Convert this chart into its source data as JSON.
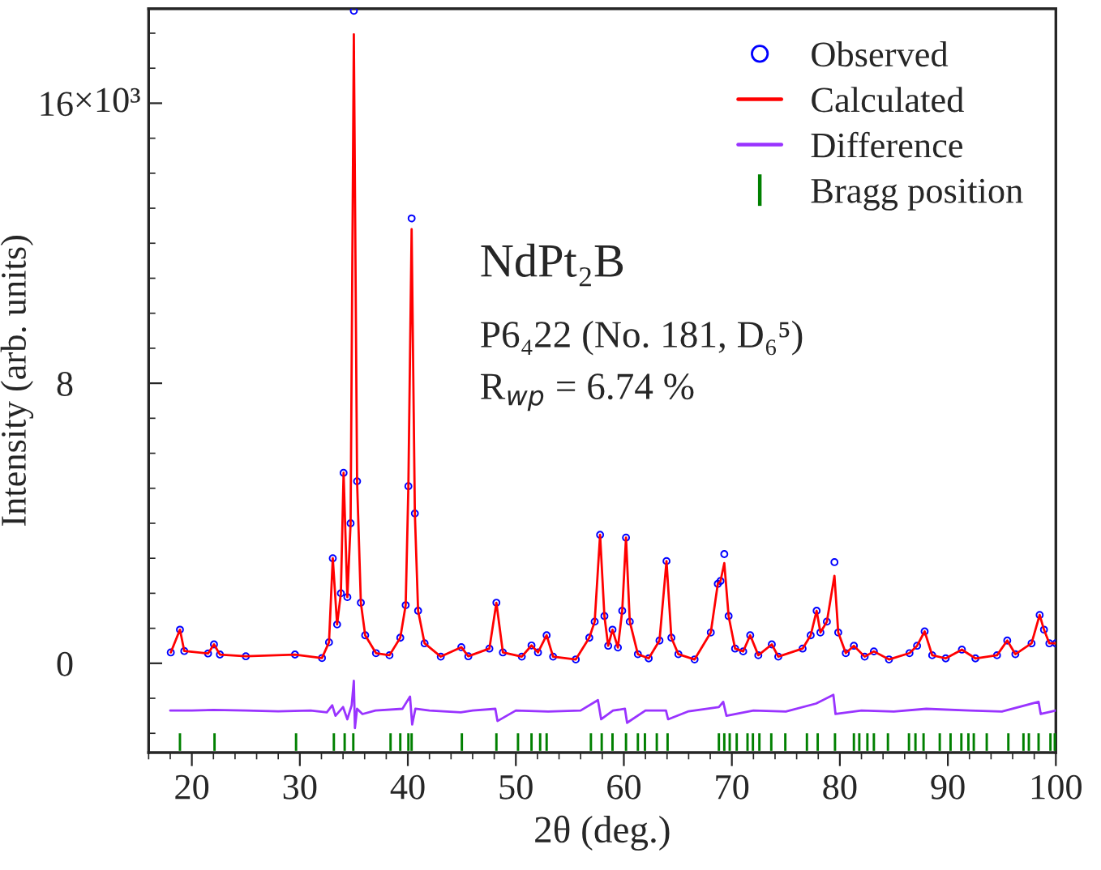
{
  "chart_data": {
    "type": "scatter",
    "xlabel": "2θ (deg.)",
    "ylabel": "Intensity (arb. units)",
    "xlim": [
      16,
      100
    ],
    "ylim": [
      -2.55,
      18.7
    ],
    "xticks": [
      20,
      30,
      40,
      50,
      60,
      70,
      80,
      90,
      100
    ],
    "yticks": [
      0,
      8,
      16
    ],
    "legend": "top right",
    "grid": false,
    "annotations": [
      "NdPt₂B",
      "P6₄22 (No. 181, D₆⁵)",
      "R$_{wp}$ = 6.74 %",
      "×10³"
    ],
    "x": [
      18.05,
      18.9,
      19.3,
      21.5,
      22.05,
      22.6,
      25,
      29.55,
      32.05,
      32.7,
      33.05,
      33.45,
      33.8,
      34.05,
      34.4,
      34.7,
      35.0,
      35.3,
      35.65,
      36.05,
      37.05,
      38.3,
      39.3,
      39.8,
      40.05,
      40.35,
      40.65,
      40.95,
      41.55,
      43.05,
      44.95,
      45.6,
      47.55,
      48.2,
      48.8,
      50.55,
      51.45,
      52.05,
      52.85,
      53.45,
      55.55,
      56.8,
      57.3,
      57.8,
      58.2,
      58.55,
      58.95,
      59.45,
      59.85,
      60.2,
      60.55,
      61.3,
      62.3,
      63.3,
      63.95,
      64.4,
      65.05,
      66.55,
      68.05,
      68.7,
      68.95,
      69.3,
      69.7,
      70.3,
      71.05,
      71.7,
      72.45,
      73.7,
      74.3,
      76.55,
      77.3,
      77.85,
      78.2,
      78.8,
      79.5,
      79.85,
      80.55,
      81.3,
      82.3,
      83.15,
      84.55,
      86.45,
      87.15,
      87.85,
      88.55,
      89.8,
      91.3,
      92.55,
      94.55,
      95.5,
      96.25,
      97.75,
      98.5,
      98.9,
      99.4,
      100
    ],
    "series": [
      {
        "name": "Observed",
        "marker": "circle",
        "color": "#0000ff",
        "values": [
          0.31,
          0.96,
          0.35,
          0.28,
          0.54,
          0.25,
          0.2,
          0.25,
          0.15,
          0.6,
          3.0,
          1.11,
          2.0,
          5.44,
          1.89,
          4.0,
          18.64,
          5.2,
          1.73,
          0.8,
          0.29,
          0.23,
          0.73,
          1.66,
          5.06,
          12.71,
          4.28,
          1.5,
          0.57,
          0.19,
          0.46,
          0.2,
          0.42,
          1.73,
          0.31,
          0.19,
          0.51,
          0.31,
          0.8,
          0.19,
          0.11,
          0.73,
          1.19,
          3.67,
          1.35,
          0.5,
          0.96,
          0.45,
          1.5,
          3.59,
          1.19,
          0.26,
          0.14,
          0.65,
          2.92,
          0.73,
          0.26,
          0.11,
          0.88,
          2.27,
          2.35,
          3.12,
          1.35,
          0.42,
          0.34,
          0.8,
          0.23,
          0.54,
          0.19,
          0.42,
          0.8,
          1.5,
          0.88,
          1.19,
          2.89,
          0.88,
          0.29,
          0.5,
          0.19,
          0.34,
          0.11,
          0.29,
          0.5,
          0.91,
          0.23,
          0.14,
          0.39,
          0.14,
          0.23,
          0.65,
          0.26,
          0.57,
          1.38,
          0.96,
          0.57,
          0.57
        ]
      },
      {
        "name": "Calculated",
        "type": "line",
        "color": "#ff0000",
        "values": [
          0.31,
          0.96,
          0.35,
          0.28,
          0.54,
          0.25,
          0.2,
          0.25,
          0.15,
          0.6,
          3.0,
          1.11,
          2.0,
          5.44,
          1.89,
          4.0,
          17.97,
          5.2,
          1.73,
          0.8,
          0.29,
          0.23,
          0.73,
          1.66,
          5.06,
          12.4,
          4.28,
          1.5,
          0.57,
          0.19,
          0.46,
          0.2,
          0.42,
          1.73,
          0.31,
          0.19,
          0.51,
          0.31,
          0.8,
          0.19,
          0.11,
          0.73,
          1.19,
          3.67,
          1.35,
          0.5,
          0.96,
          0.45,
          1.5,
          3.59,
          1.19,
          0.26,
          0.14,
          0.65,
          2.92,
          0.73,
          0.26,
          0.11,
          0.88,
          2.27,
          2.35,
          2.86,
          1.35,
          0.42,
          0.34,
          0.8,
          0.23,
          0.54,
          0.19,
          0.42,
          0.8,
          1.5,
          0.88,
          1.19,
          2.5,
          0.88,
          0.29,
          0.5,
          0.19,
          0.34,
          0.11,
          0.29,
          0.5,
          0.91,
          0.23,
          0.14,
          0.39,
          0.14,
          0.23,
          0.65,
          0.26,
          0.57,
          1.38,
          0.96,
          0.57,
          0.57
        ]
      },
      {
        "name": "Difference",
        "type": "line",
        "color": "#9933ff",
        "x": [
          18,
          20,
          22,
          25,
          28,
          31,
          32.5,
          33.0,
          33.3,
          34.0,
          34.4,
          34.8,
          35.0,
          35.1,
          35.3,
          35.8,
          37,
          39.5,
          40.2,
          40.4,
          40.7,
          42,
          44.9,
          46,
          48.1,
          48.3,
          50,
          53,
          56,
          57.6,
          57.9,
          59,
          60.1,
          60.3,
          62,
          63.9,
          64.1,
          66,
          68.8,
          69.2,
          69.5,
          72,
          75,
          77.8,
          79.4,
          79.6,
          82,
          85,
          88,
          92,
          95,
          98.4,
          98.6,
          100
        ],
        "values": [
          -1.35,
          -1.35,
          -1.33,
          -1.35,
          -1.37,
          -1.35,
          -1.4,
          -1.2,
          -1.5,
          -1.25,
          -1.6,
          -1.2,
          -0.5,
          -1.85,
          -1.3,
          -1.45,
          -1.35,
          -1.3,
          -0.95,
          -1.75,
          -1.3,
          -1.35,
          -1.4,
          -1.35,
          -1.3,
          -1.65,
          -1.35,
          -1.38,
          -1.35,
          -1.05,
          -1.6,
          -1.35,
          -1.3,
          -1.7,
          -1.35,
          -1.35,
          -1.6,
          -1.37,
          -1.25,
          -1.1,
          -1.5,
          -1.35,
          -1.38,
          -1.15,
          -0.9,
          -1.45,
          -1.35,
          -1.38,
          -1.3,
          -1.35,
          -1.38,
          -1.1,
          -1.45,
          -1.35
        ]
      },
      {
        "name": "Bragg position",
        "type": "bar",
        "color": "#008000",
        "x": [
          18.9,
          22.1,
          29.65,
          33.15,
          34.15,
          34.95,
          38.4,
          39.3,
          40.05,
          40.35,
          45.0,
          48.2,
          50.2,
          51.45,
          52.25,
          52.85,
          56.95,
          57.95,
          58.95,
          60.2,
          61.3,
          61.95,
          63.05,
          64.05,
          68.8,
          69.3,
          69.8,
          70.45,
          71.45,
          71.95,
          72.55,
          73.65,
          74.95,
          76.95,
          77.95,
          79.55,
          81.3,
          81.8,
          82.55,
          83.15,
          84.45,
          86.4,
          87.0,
          87.75,
          89.25,
          90.25,
          91.25,
          91.9,
          92.4,
          93.6,
          95.6,
          97.0,
          97.5,
          98.4,
          99.5,
          99.9
        ],
        "base": [
          -2.5,
          -2.5,
          -2.5,
          -2.5,
          -2.5,
          -2.5,
          -2.5,
          -2.5,
          -2.5,
          -2.5,
          -2.5,
          -2.5,
          -2.5,
          -2.5,
          -2.5,
          -2.5,
          -2.5,
          -2.5,
          -2.5,
          -2.5,
          -2.5,
          -2.5,
          -2.5,
          -2.5,
          -2.5,
          -2.5,
          -2.5,
          -2.5,
          -2.5,
          -2.5,
          -2.5,
          -2.5,
          -2.5,
          -2.5,
          -2.5,
          -2.5,
          -2.5,
          -2.5,
          -2.5,
          -2.5,
          -2.5,
          -2.5,
          -2.5,
          -2.5,
          -2.5,
          -2.5,
          -2.5,
          -2.5,
          -2.5,
          -2.5,
          -2.5,
          -2.5,
          -2.5,
          -2.5,
          -2.5,
          -2.5
        ],
        "values": [
          0.5,
          0.5,
          0.5,
          0.5,
          0.5,
          0.5,
          0.5,
          0.5,
          0.5,
          0.5,
          0.5,
          0.5,
          0.5,
          0.5,
          0.5,
          0.5,
          0.5,
          0.5,
          0.5,
          0.5,
          0.5,
          0.5,
          0.5,
          0.5,
          0.5,
          0.5,
          0.5,
          0.5,
          0.5,
          0.5,
          0.5,
          0.5,
          0.5,
          0.5,
          0.5,
          0.5,
          0.5,
          0.5,
          0.5,
          0.5,
          0.5,
          0.5,
          0.5,
          0.5,
          0.5,
          0.5,
          0.5,
          0.5,
          0.5,
          0.5,
          0.5,
          0.5,
          0.5,
          0.5,
          0.5,
          0.5
        ]
      }
    ]
  }
}
